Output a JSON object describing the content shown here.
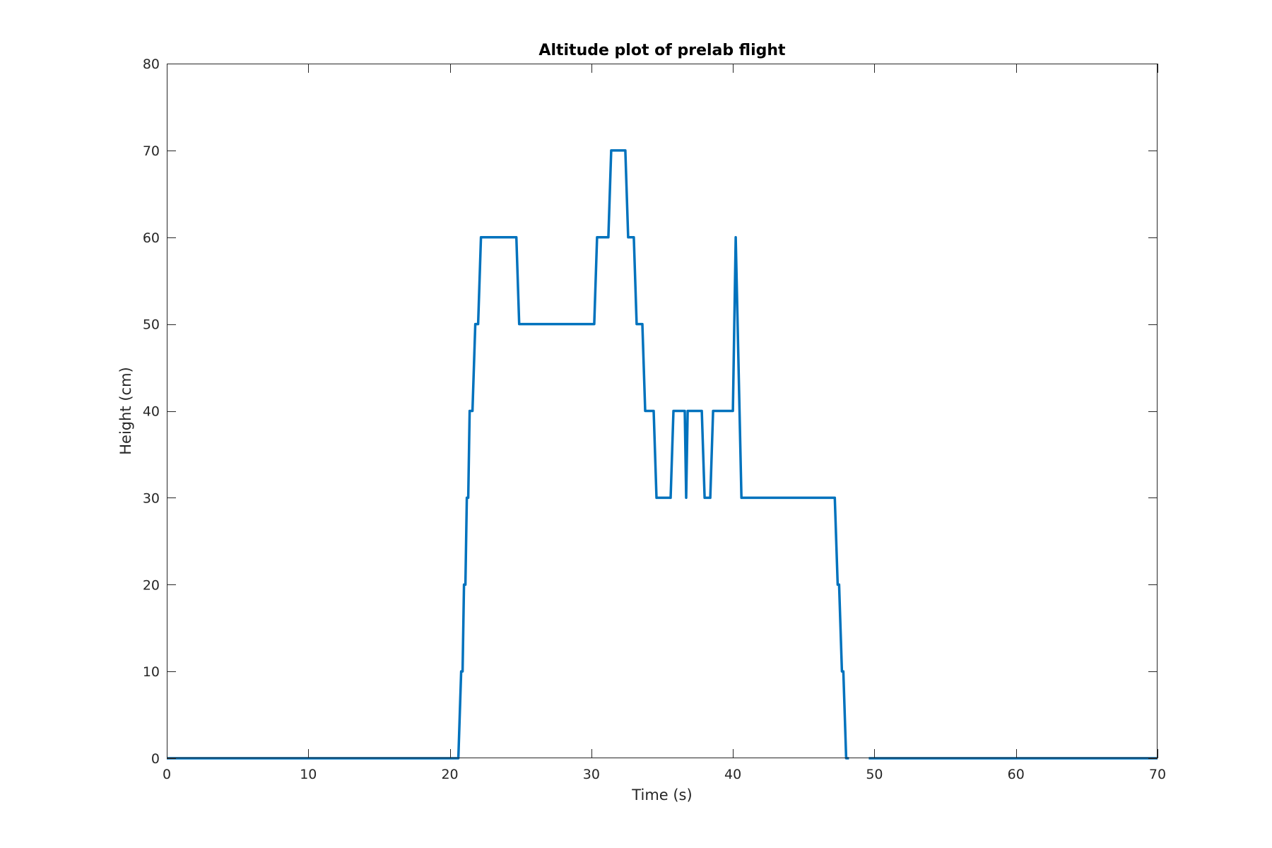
{
  "chart_data": {
    "type": "line",
    "title": "Altitude plot of prelab flight",
    "xlabel": "Time (s)",
    "ylabel": "Height (cm)",
    "xlim": [
      0,
      70
    ],
    "ylim": [
      0,
      80
    ],
    "xticks": [
      0,
      10,
      20,
      30,
      40,
      50,
      60,
      70
    ],
    "yticks": [
      0,
      10,
      20,
      30,
      40,
      50,
      60,
      70,
      80
    ],
    "xtick_labels": [
      "0",
      "10",
      "20",
      "30",
      "40",
      "50",
      "60",
      "70"
    ],
    "ytick_labels": [
      "0",
      "10",
      "20",
      "30",
      "40",
      "50",
      "60",
      "70",
      "80"
    ],
    "grid": false,
    "line_color": "#0072BD",
    "series": [
      {
        "segments": [
          {
            "x": [
              0,
              20.6,
              20.8,
              20.9,
              21.0,
              21.1,
              21.2,
              21.3,
              21.4,
              21.6,
              21.8,
              22.0,
              22.2,
              24.7,
              24.9,
              30.2,
              30.4,
              31.2,
              31.4,
              32.4,
              32.6,
              33.0,
              33.2,
              33.6,
              33.8,
              34.4,
              34.6,
              35.6,
              35.8,
              36.6,
              36.7,
              36.8,
              37.0,
              37.8,
              38.0,
              38.4,
              38.6,
              40.0,
              40.2,
              40.6,
              47.2,
              47.4,
              47.5,
              47.7,
              47.8,
              48.0,
              48.2
            ],
            "y": [
              0,
              0,
              10,
              10,
              20,
              20,
              30,
              30,
              40,
              40,
              50,
              50,
              60,
              60,
              50,
              50,
              60,
              60,
              70,
              70,
              60,
              60,
              50,
              50,
              40,
              40,
              30,
              30,
              40,
              40,
              30,
              40,
              40,
              40,
              30,
              30,
              40,
              40,
              60,
              30,
              30,
              20,
              20,
              10,
              10,
              0,
              0
            ]
          },
          {
            "x": [
              49.6,
              70
            ],
            "y": [
              0,
              0
            ]
          }
        ]
      }
    ]
  }
}
